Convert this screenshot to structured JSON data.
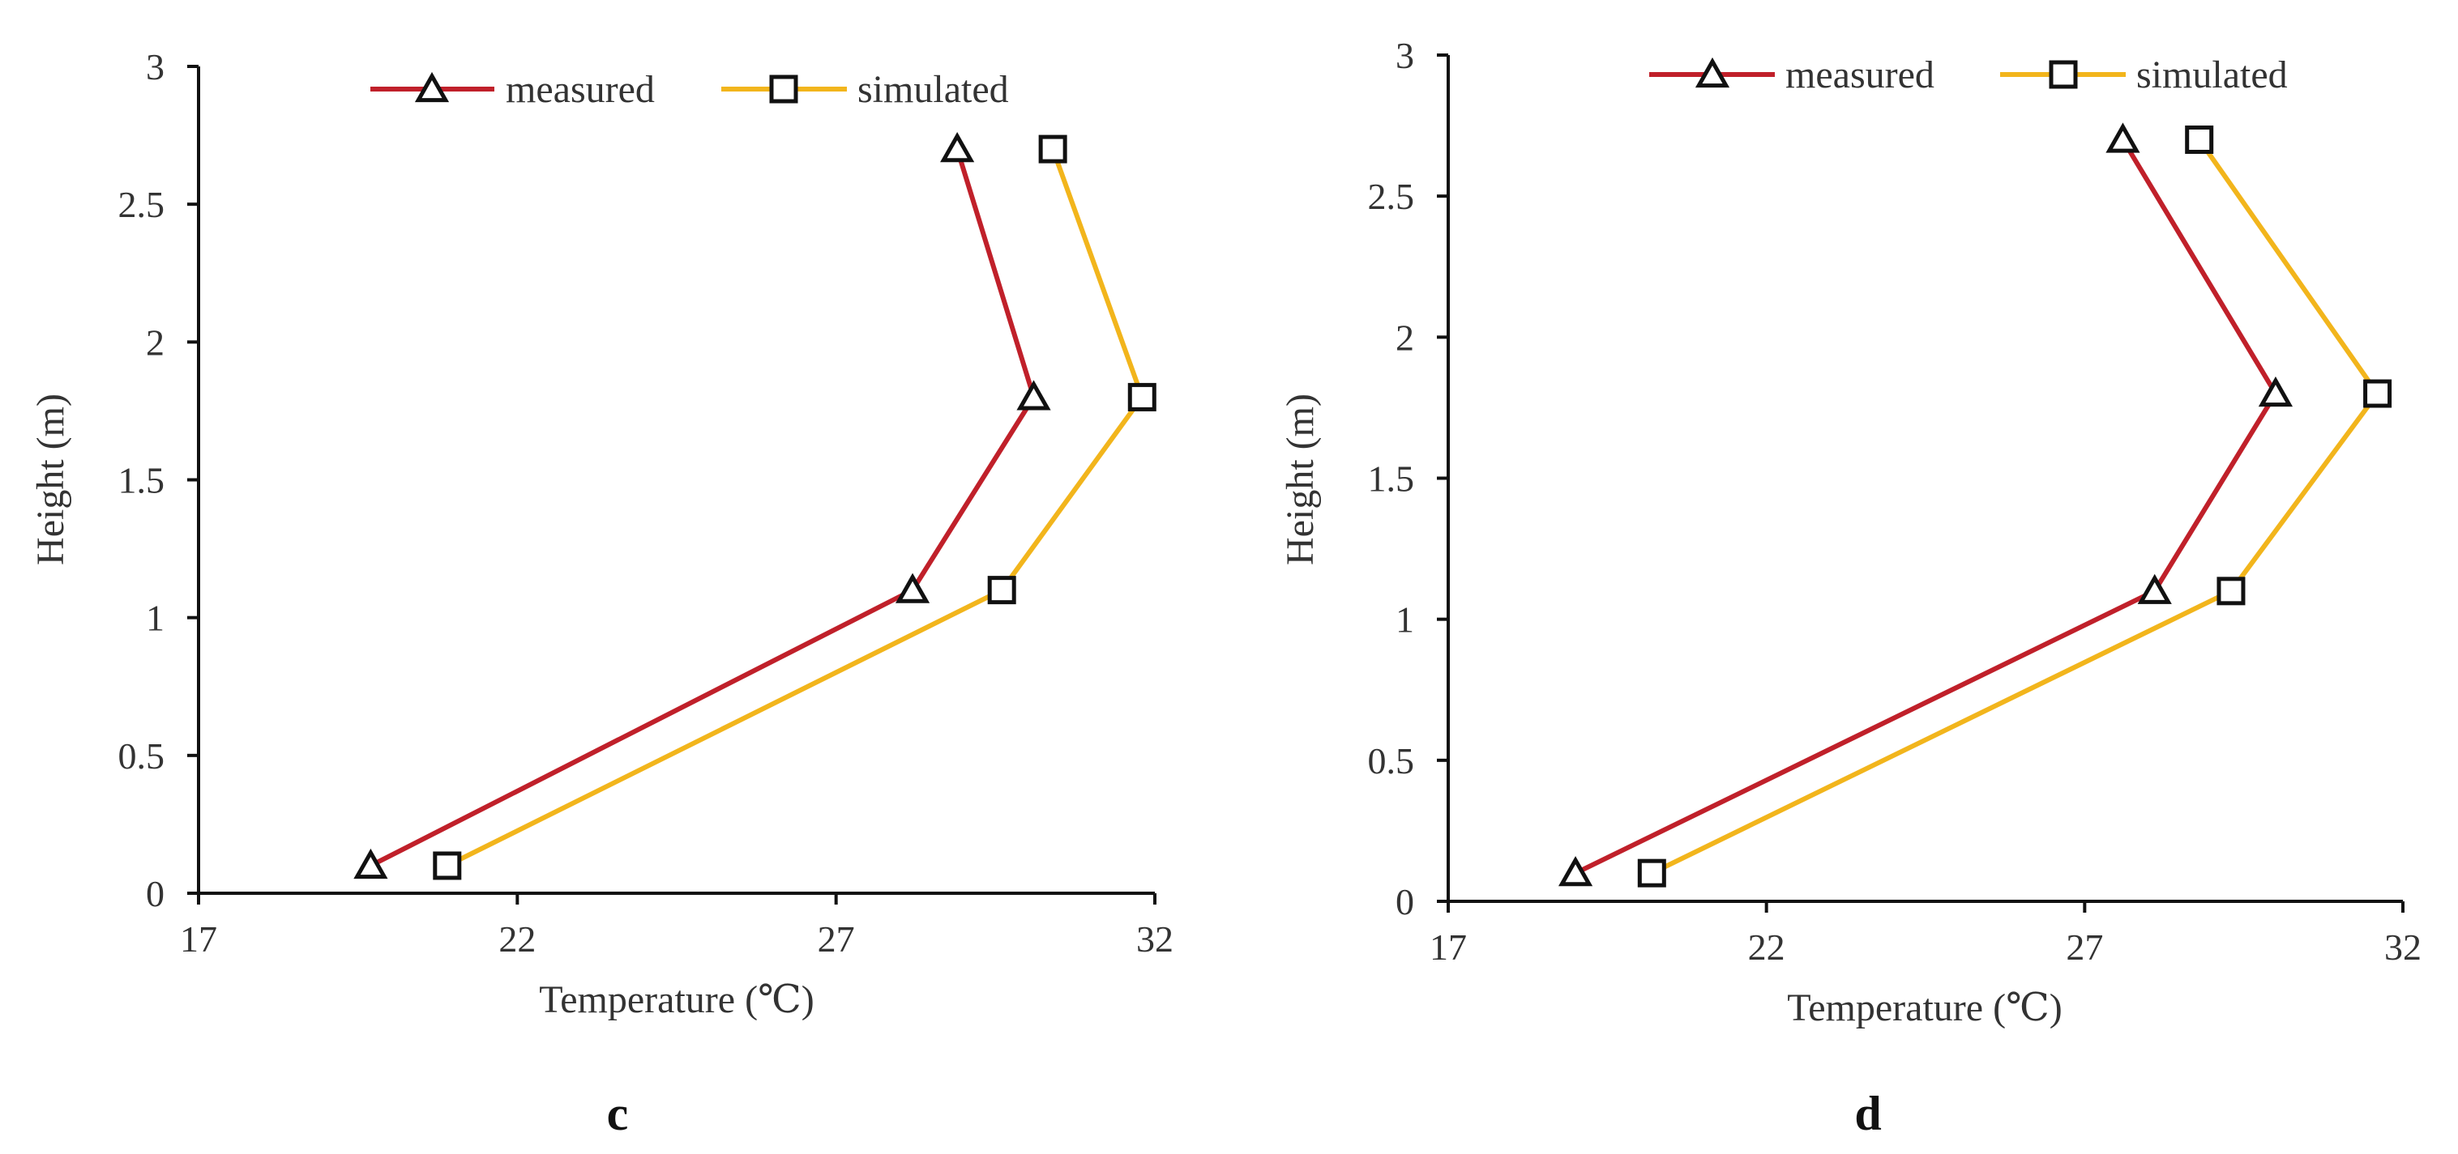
{
  "figure": {
    "colors": {
      "measured": "#C0202A",
      "simulated": "#F2B51C",
      "axis": "#111111",
      "marker_stroke": "#111111"
    }
  },
  "chart_data": [
    {
      "id": "chart-c",
      "type": "line",
      "panel_label": "c",
      "xlabel": "Temperature (℃)",
      "ylabel": "Height (m)",
      "xlim": [
        17,
        32
      ],
      "ylim": [
        0,
        3
      ],
      "xticks": [
        17,
        22,
        27,
        32
      ],
      "yticks": [
        0,
        0.5,
        1,
        1.5,
        2,
        2.5,
        3
      ],
      "xtick_labels": [
        "17",
        "22",
        "27",
        "32"
      ],
      "ytick_labels": [
        "0",
        "0.5",
        "1",
        "1.5",
        "2",
        "2.5",
        "3"
      ],
      "grid": false,
      "legend_position": "top",
      "series": [
        {
          "name": "measured",
          "marker": "triangle",
          "x": [
            19.7,
            28.2,
            30.1,
            28.9
          ],
          "y": [
            0.1,
            1.1,
            1.8,
            2.7
          ]
        },
        {
          "name": "simulated",
          "marker": "square",
          "x": [
            20.9,
            29.6,
            31.8,
            30.4
          ],
          "y": [
            0.1,
            1.1,
            1.8,
            2.7
          ]
        }
      ]
    },
    {
      "id": "chart-d",
      "type": "line",
      "panel_label": "d",
      "xlabel": "Temperature (℃)",
      "ylabel": "Height (m)",
      "xlim": [
        17,
        32
      ],
      "ylim": [
        0,
        3
      ],
      "xticks": [
        17,
        22,
        27,
        32
      ],
      "yticks": [
        0,
        0.5,
        1,
        1.5,
        2,
        2.5,
        3
      ],
      "xtick_labels": [
        "17",
        "22",
        "27",
        "32"
      ],
      "ytick_labels": [
        "0",
        "0.5",
        "1",
        "1.5",
        "2",
        "2.5",
        "3"
      ],
      "grid": false,
      "legend_position": "top",
      "series": [
        {
          "name": "measured",
          "marker": "triangle",
          "x": [
            19.0,
            28.1,
            30.0,
            27.6
          ],
          "y": [
            0.1,
            1.1,
            1.8,
            2.7
          ]
        },
        {
          "name": "simulated",
          "marker": "square",
          "x": [
            20.2,
            29.3,
            31.6,
            28.8
          ],
          "y": [
            0.1,
            1.1,
            1.8,
            2.7
          ]
        }
      ]
    }
  ]
}
